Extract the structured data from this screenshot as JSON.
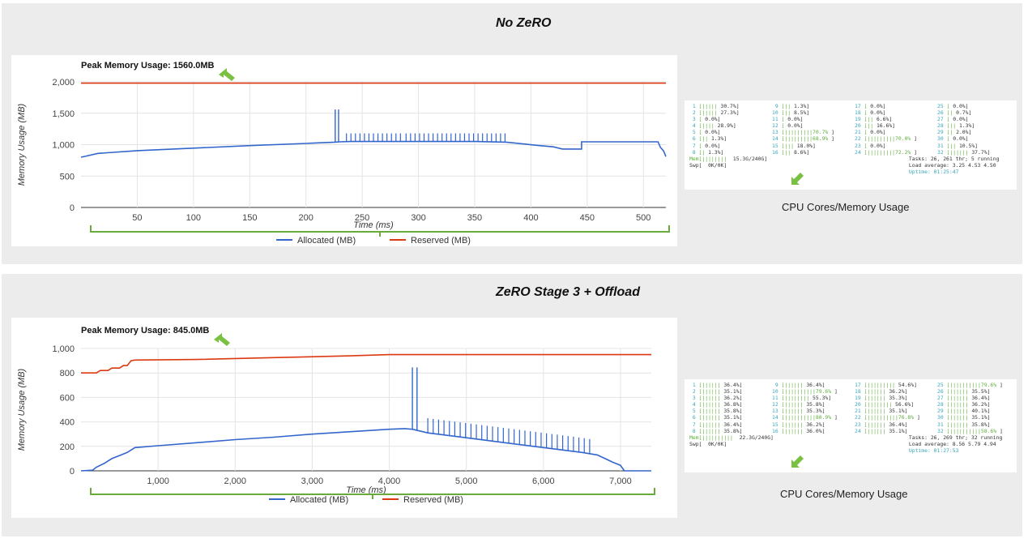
{
  "top_panel": {
    "title": "No ZeRO",
    "caption": "CPU Cores/Memory Usage",
    "htop": {
      "col1": [
        [
          "1",
          "[|||||",
          "30.7%]"
        ],
        [
          "2",
          "[|||||",
          "27.3%]"
        ],
        [
          "3",
          "[",
          "0.0%]"
        ],
        [
          "4",
          "[||||",
          "28.9%]"
        ],
        [
          "5",
          "[",
          "0.0%]"
        ],
        [
          "6",
          "[||",
          "1.3%]"
        ],
        [
          "7",
          "[",
          "0.0%]"
        ],
        [
          "8",
          "[|",
          "1.3%]"
        ]
      ],
      "col2": [
        [
          "9",
          "[||",
          "1.3%]"
        ],
        [
          "10",
          "[||",
          "8.5%]"
        ],
        [
          "11",
          "[",
          "0.0%]"
        ],
        [
          "12",
          "[",
          "0.0%]"
        ],
        [
          "13",
          "[|||||||||70.7%",
          "]"
        ],
        [
          "14",
          "[|||||||||68.9%",
          "]"
        ],
        [
          "15",
          "[|||",
          "18.0%]"
        ],
        [
          "16",
          "[||",
          "8.6%]"
        ]
      ],
      "col3": [
        [
          "17",
          "[",
          "0.0%]"
        ],
        [
          "18",
          "[",
          "0.0%]"
        ],
        [
          "19",
          "[||",
          "6.6%]"
        ],
        [
          "20",
          "[||",
          "16.6%]"
        ],
        [
          "21",
          "[",
          "0.0%]"
        ],
        [
          "22",
          "[|||||||||70.0%",
          "]"
        ],
        [
          "23",
          "[",
          "0.0%]"
        ],
        [
          "24",
          "[|||||||||72.2%",
          "]"
        ]
      ],
      "col4": [
        [
          "25",
          "[",
          "0.0%]"
        ],
        [
          "26",
          "[|",
          "0.7%]"
        ],
        [
          "27",
          "[",
          "0.0%]"
        ],
        [
          "28",
          "[||",
          "1.3%]"
        ],
        [
          "29",
          "[|",
          "2.0%]"
        ],
        [
          "30",
          "[",
          "0.0%]"
        ],
        [
          "31",
          "[||",
          "10.5%]"
        ],
        [
          "32",
          "[||||||",
          "37.7%]"
        ]
      ],
      "mem_label": "Mem[||||||||",
      "mem_value": "15.3G/240G]",
      "swp_label": "Swp[",
      "swp_value": "0K/0K]",
      "tasks": "Tasks: 26, 261 thr; 5 running",
      "load": "Load average: 3.25 4.53 4.50",
      "uptime": "Uptime: 01:25:47"
    }
  },
  "bottom_panel": {
    "title": "ZeRO Stage 3 + Offload",
    "caption": "CPU Cores/Memory  Usage",
    "htop": {
      "col1": [
        [
          "1",
          "[||||||",
          "36.4%]"
        ],
        [
          "2",
          "[||||||",
          "35.1%]"
        ],
        [
          "3",
          "[||||||",
          "36.2%]"
        ],
        [
          "4",
          "[||||||",
          "36.8%]"
        ],
        [
          "5",
          "[||||||",
          "35.8%]"
        ],
        [
          "6",
          "[||||||",
          "35.1%]"
        ],
        [
          "7",
          "[||||||",
          "36.4%]"
        ],
        [
          "8",
          "[||||||",
          "35.8%]"
        ]
      ],
      "col2": [
        [
          "9",
          "[||||||",
          "36.4%]"
        ],
        [
          "10",
          "[||||||||||79.6%",
          "]"
        ],
        [
          "11",
          "[||||||||",
          "55.3%]"
        ],
        [
          "12",
          "[||||||",
          "35.8%]"
        ],
        [
          "13",
          "[||||||",
          "35.3%]"
        ],
        [
          "14",
          "[||||||||||80.9%",
          "]"
        ],
        [
          "15",
          "[||||||",
          "36.2%]"
        ],
        [
          "16",
          "[||||||",
          "36.0%]"
        ]
      ],
      "col3": [
        [
          "17",
          "[|||||||||",
          "54.6%]"
        ],
        [
          "18",
          "[||||||",
          "36.2%]"
        ],
        [
          "19",
          "[||||||",
          "35.3%]"
        ],
        [
          "20",
          "[||||||||",
          "56.6%]"
        ],
        [
          "21",
          "[||||||",
          "35.1%]"
        ],
        [
          "22",
          "[||||||||||76.8%",
          "]"
        ],
        [
          "23",
          "[||||||",
          "36.4%]"
        ],
        [
          "24",
          "[||||||",
          "35.1%]"
        ]
      ],
      "col4": [
        [
          "25",
          "[||||||||||79.6%",
          "]"
        ],
        [
          "26",
          "[||||||",
          "35.5%]"
        ],
        [
          "27",
          "[||||||",
          "36.4%]"
        ],
        [
          "28",
          "[||||||",
          "36.2%]"
        ],
        [
          "29",
          "[||||||",
          "40.1%]"
        ],
        [
          "30",
          "[||||||",
          "35.1%]"
        ],
        [
          "31",
          "[||||||",
          "35.8%]"
        ],
        [
          "32",
          "[||||||||||58.6%",
          "]"
        ]
      ],
      "mem_label": "Mem[||||||||||",
      "mem_value": "22.3G/240G]",
      "swp_label": "Swp[",
      "swp_value": "0K/0K]",
      "tasks": "Tasks: 26, 269 thr; 32 running",
      "load": "Load average: 8.56 5.79 4.94",
      "uptime": "Uptime: 01:27:53"
    }
  },
  "chart_data": [
    {
      "type": "line",
      "title": "Peak Memory Usage: 1560.0MB",
      "xlabel": "Time (ms)",
      "ylabel": "Memory Usage (MB)",
      "xlim": [
        0,
        520
      ],
      "ylim": [
        0,
        2000
      ],
      "x_ticks": [
        50,
        100,
        150,
        200,
        250,
        300,
        350,
        400,
        450,
        500
      ],
      "x_tick_labels": [
        "50",
        "100",
        "150",
        "200",
        "250",
        "300",
        "350",
        "400",
        "450",
        "500"
      ],
      "y_ticks": [
        0,
        500,
        1000,
        1500,
        2000
      ],
      "y_tick_labels": [
        "0",
        "500",
        "1,000",
        "1,500",
        "2,000"
      ],
      "grid": true,
      "legend_position": "bottom",
      "series": [
        {
          "name": "Allocated (MB)",
          "color": "#3366cc",
          "points": [
            [
              0,
              800
            ],
            [
              5,
              820
            ],
            [
              15,
              860
            ],
            [
              50,
              905
            ],
            [
              100,
              945
            ],
            [
              150,
              985
            ],
            [
              200,
              1020
            ],
            [
              226,
              1040
            ],
            [
              230,
              1045
            ],
            [
              240,
              1050
            ],
            [
              300,
              1050
            ],
            [
              350,
              1050
            ],
            [
              378,
              1040
            ],
            [
              405,
              990
            ],
            [
              420,
              965
            ],
            [
              428,
              930
            ],
            [
              445,
              930
            ],
            [
              445,
              1045
            ],
            [
              493,
              1045
            ],
            [
              513,
              1045
            ],
            [
              515,
              960
            ],
            [
              518,
              900
            ],
            [
              520,
              810
            ]
          ],
          "spikes": {
            "base": 1045,
            "peak": 1560,
            "x": [
              226,
              229
            ]
          },
          "small_spikes": {
            "base": 1048,
            "peak": 1180,
            "x": [
              236,
              240,
              244,
              248,
              252,
              256,
              260,
              264,
              268,
              272,
              276,
              280,
              284,
              289,
              293,
              297,
              301,
              305,
              309,
              313,
              317,
              321,
              325,
              329,
              333,
              337,
              341,
              345,
              349,
              353,
              357,
              361,
              365,
              369,
              373,
              377
            ]
          }
        },
        {
          "name": "Reserved (MB)",
          "color": "#dc3912",
          "points": [
            [
              0,
              1980
            ],
            [
              520,
              1980
            ]
          ]
        }
      ]
    },
    {
      "type": "line",
      "title": "Peak Memory Usage: 845.0MB",
      "xlabel": "Time (ms)",
      "ylabel": "Memory Usage (MB)",
      "xlim": [
        0,
        7400
      ],
      "ylim": [
        0,
        1000
      ],
      "x_ticks": [
        1000,
        2000,
        3000,
        4000,
        5000,
        6000,
        7000
      ],
      "x_tick_labels": [
        "1,000",
        "2,000",
        "3,000",
        "4,000",
        "5,000",
        "6,000",
        "7,000"
      ],
      "y_ticks": [
        0,
        200,
        400,
        600,
        800,
        1000
      ],
      "y_tick_labels": [
        "0",
        "200",
        "400",
        "600",
        "800",
        "1,000"
      ],
      "grid": true,
      "legend_position": "bottom",
      "series": [
        {
          "name": "Allocated (MB)",
          "color": "#3366cc",
          "points": [
            [
              0,
              0
            ],
            [
              150,
              5
            ],
            [
              200,
              30
            ],
            [
              300,
              60
            ],
            [
              400,
              100
            ],
            [
              500,
              125
            ],
            [
              600,
              150
            ],
            [
              700,
              190
            ],
            [
              800,
              195
            ],
            [
              1000,
              205
            ],
            [
              1500,
              230
            ],
            [
              2000,
              255
            ],
            [
              2500,
              275
            ],
            [
              3000,
              300
            ],
            [
              3500,
              320
            ],
            [
              4000,
              340
            ],
            [
              4200,
              345
            ],
            [
              4300,
              340
            ],
            [
              4500,
              310
            ],
            [
              5000,
              270
            ],
            [
              5500,
              230
            ],
            [
              6000,
              190
            ],
            [
              6500,
              150
            ],
            [
              6700,
              130
            ],
            [
              6800,
              100
            ],
            [
              6900,
              70
            ],
            [
              7000,
              45
            ],
            [
              7050,
              0
            ],
            [
              7400,
              0
            ]
          ],
          "spikes": {
            "x": [
              4300,
              4360
            ],
            "peak": 845
          },
          "small_spikes": {
            "peak_offset": 120,
            "x": [
              4500,
              4570,
              4640,
              4710,
              4780,
              4850,
              4920,
              4990,
              5060,
              5130,
              5200,
              5270,
              5340,
              5410,
              5480,
              5550,
              5620,
              5690,
              5760,
              5830,
              5900,
              5970,
              6040,
              6110,
              6180,
              6250,
              6320,
              6390,
              6460,
              6530,
              6600
            ]
          }
        },
        {
          "name": "Reserved (MB)",
          "color": "#dc3912",
          "points": [
            [
              0,
              800
            ],
            [
              200,
              800
            ],
            [
              250,
              820
            ],
            [
              350,
              820
            ],
            [
              400,
              840
            ],
            [
              500,
              840
            ],
            [
              550,
              860
            ],
            [
              600,
              860
            ],
            [
              650,
              900
            ],
            [
              700,
              905
            ],
            [
              1500,
              910
            ],
            [
              2500,
              925
            ],
            [
              3500,
              940
            ],
            [
              4000,
              950
            ],
            [
              7400,
              950
            ]
          ]
        }
      ]
    }
  ]
}
